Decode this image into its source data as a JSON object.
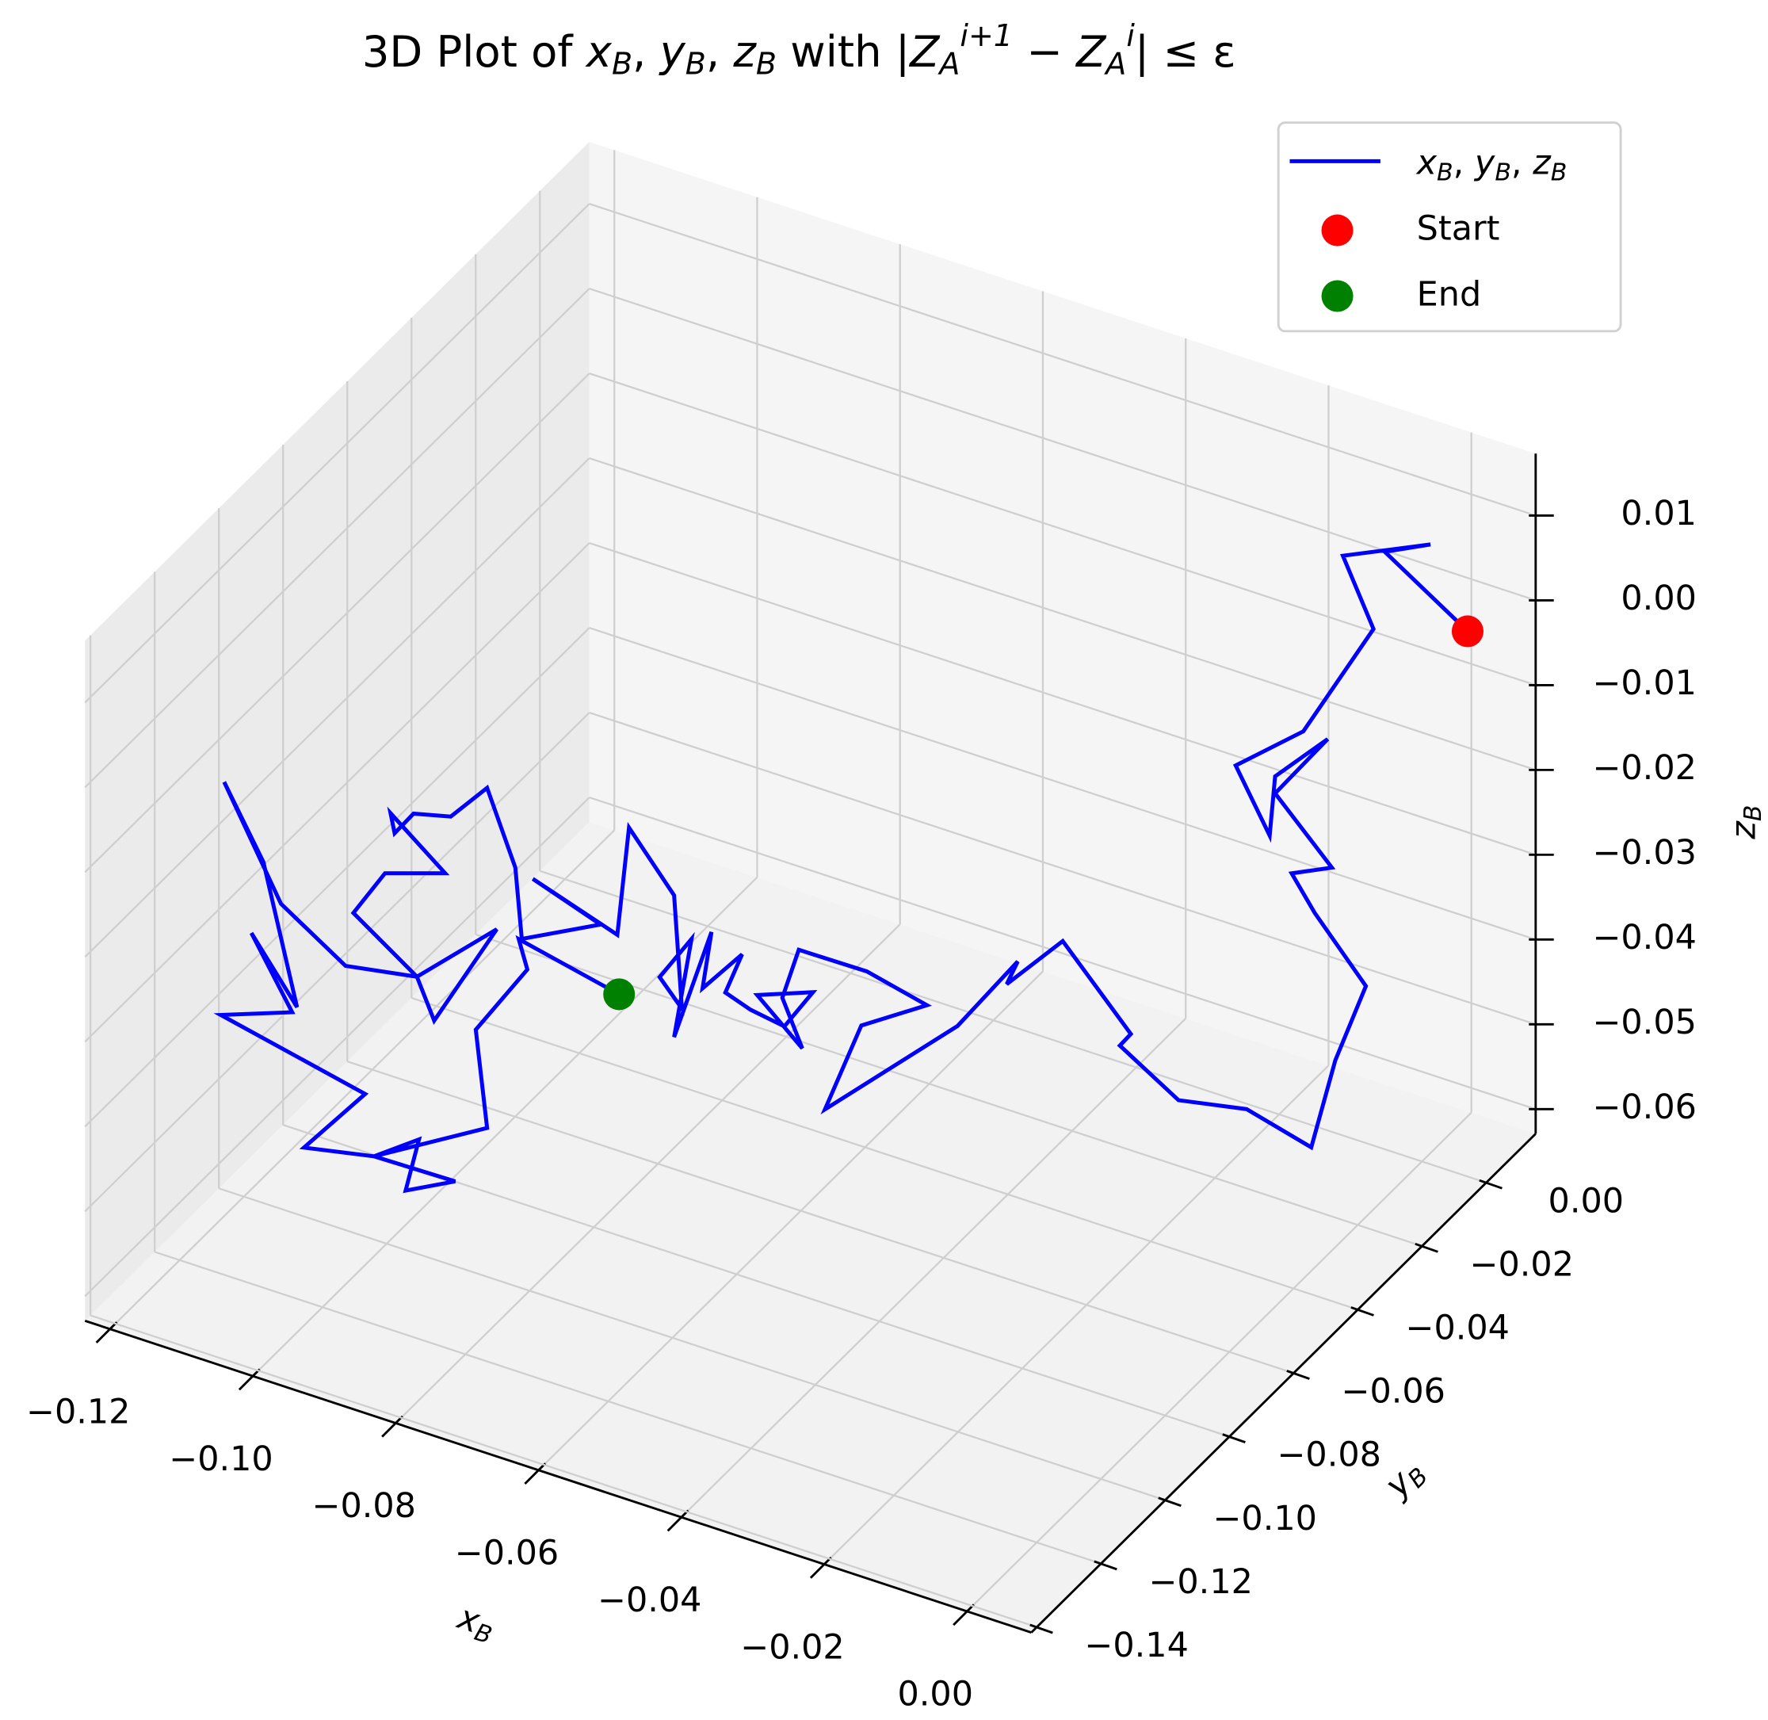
{
  "chart_data": {
    "type": "line3d",
    "title": "3D Plot of xB, yB, zB with |ZAi+1 − ZAi| ≤ ε",
    "x_label": "xB",
    "y_label": "yB",
    "z_label": "zB",
    "xlim": [
      -0.1235,
      0.009
    ],
    "ylim": [
      -0.1417,
      0.0154
    ],
    "zlim": [
      -0.0629,
      0.0173
    ],
    "xticks": [
      {
        "value": -0.12,
        "label": "−0.12"
      },
      {
        "value": -0.1,
        "label": "−0.10"
      },
      {
        "value": -0.08,
        "label": "−0.08"
      },
      {
        "value": -0.06,
        "label": "−0.06"
      },
      {
        "value": -0.04,
        "label": "−0.04"
      },
      {
        "value": -0.02,
        "label": "−0.02"
      },
      {
        "value": 0,
        "label": "0.00"
      }
    ],
    "yticks": [
      {
        "value": -0.14,
        "label": "−0.14"
      },
      {
        "value": -0.12,
        "label": "−0.12"
      },
      {
        "value": -0.1,
        "label": "−0.10"
      },
      {
        "value": -0.08,
        "label": "−0.08"
      },
      {
        "value": -0.06,
        "label": "−0.06"
      },
      {
        "value": -0.04,
        "label": "−0.04"
      },
      {
        "value": -0.02,
        "label": "−0.02"
      },
      {
        "value": 0,
        "label": "0.00"
      }
    ],
    "zticks": [
      {
        "value": -0.06,
        "label": "−0.06"
      },
      {
        "value": -0.05,
        "label": "−0.05"
      },
      {
        "value": -0.04,
        "label": "−0.04"
      },
      {
        "value": -0.03,
        "label": "−0.03"
      },
      {
        "value": -0.02,
        "label": "−0.02"
      },
      {
        "value": -0.01,
        "label": "−0.01"
      },
      {
        "value": 0,
        "label": "0.00"
      },
      0.01
    ],
    "grid": true,
    "legend": "upper right",
    "series": [
      {
        "name": "xB, yB, zB",
        "type": "line",
        "color": "#0000ff",
        "x": [
          0.0028,
          -0.0048,
          -0.0006,
          -0.0086,
          -0.0058,
          -0.0122,
          -0.0184,
          -0.0153,
          -0.0148,
          -0.01,
          -0.0148,
          -0.0096,
          -0.0133,
          -0.0112,
          -0.0065,
          -0.0093,
          -0.0115,
          -0.0174,
          -0.0236,
          -0.029,
          -0.028,
          -0.0342,
          -0.0393,
          -0.0383,
          -0.0438,
          -0.0559,
          -0.0526,
          -0.0466,
          -0.0521,
          -0.0583,
          -0.0598,
          -0.058,
          -0.0621,
          -0.057,
          -0.0596,
          -0.0627,
          -0.065,
          -0.0635,
          -0.0671,
          -0.0663,
          -0.0697,
          -0.0681,
          -0.071,
          -0.069,
          -0.0697,
          -0.0738,
          -0.0749,
          -0.0826,
          -0.0764,
          -0.0836,
          -0.0842,
          -0.0868,
          -0.0901,
          -0.0935,
          -0.0952,
          -0.0956,
          -0.0906,
          -0.0961,
          -0.099,
          -0.0932,
          -0.0916,
          -0.0859,
          -0.0932,
          -0.0997,
          -0.1056,
          -0.1108,
          -0.1072,
          -0.1041,
          -0.1083,
          -0.1046,
          -0.1111,
          -0.0979,
          -0.1035,
          -0.0971,
          -0.093,
          -0.0942,
          -0.0897,
          -0.0971,
          -0.0868,
          -0.0878,
          -0.0831,
          -0.0839,
          -0.0747
        ],
        "y": [
          0.008,
          -0.0009,
          0.004,
          -0.0055,
          -0.0022,
          -0.0098,
          -0.0171,
          -0.0134,
          -0.0128,
          -0.0071,
          -0.0128,
          -0.0067,
          -0.011,
          -0.0085,
          -0.003,
          -0.0063,
          -0.0089,
          -0.0159,
          -0.0233,
          -0.0296,
          -0.0284,
          -0.0358,
          -0.0419,
          -0.0407,
          -0.0472,
          -0.0616,
          -0.0576,
          -0.0505,
          -0.057,
          -0.0644,
          -0.0662,
          -0.064,
          -0.0689,
          -0.0629,
          -0.066,
          -0.0697,
          -0.0724,
          -0.0705,
          -0.0748,
          -0.0738,
          -0.0779,
          -0.076,
          -0.0795,
          -0.077,
          -0.0779,
          -0.0828,
          -0.084,
          -0.0932,
          -0.0859,
          -0.0944,
          -0.0951,
          -0.0981,
          -0.1021,
          -0.1061,
          -0.1082,
          -0.1086,
          -0.1027,
          -0.1092,
          -0.1126,
          -0.1057,
          -0.1039,
          -0.0971,
          -0.1057,
          -0.1135,
          -0.1205,
          -0.1266,
          -0.1224,
          -0.1188,
          -0.1237,
          -0.1192,
          -0.127,
          -0.1114,
          -0.118,
          -0.1104,
          -0.1055,
          -0.107,
          -0.1016,
          -0.1104,
          -0.0981,
          -0.0994,
          -0.0938,
          -0.0947,
          -0.0839
        ],
        "z": [
          -0.0026,
          0.008,
          0.0082,
          0.0082,
          -0.0009,
          -0.0119,
          -0.0149,
          -0.0237,
          -0.0168,
          -0.0132,
          -0.0188,
          -0.0284,
          -0.0285,
          -0.0335,
          -0.0429,
          -0.0512,
          -0.0611,
          -0.0556,
          -0.0535,
          -0.0462,
          -0.045,
          -0.033,
          -0.0372,
          -0.0347,
          -0.0414,
          -0.0492,
          -0.0399,
          -0.0385,
          -0.0336,
          -0.03,
          -0.0354,
          -0.0417,
          -0.0347,
          -0.0352,
          -0.0388,
          -0.0363,
          -0.0339,
          -0.0297,
          -0.0331,
          -0.0266,
          -0.0384,
          -0.0271,
          -0.0311,
          -0.0352,
          -0.0217,
          -0.013,
          -0.0255,
          -0.0176,
          -0.024,
          -0.0245,
          -0.016,
          -0.0062,
          -0.009,
          -0.0081,
          -0.0101,
          -0.0077,
          -0.0156,
          -0.0147,
          -0.0189,
          -0.0274,
          -0.0328,
          -0.023,
          -0.0274,
          -0.025,
          -0.0167,
          -0.0015,
          -0.0115,
          -0.0291,
          -0.0197,
          -0.0297,
          -0.0289,
          -0.0404,
          -0.0458,
          -0.0479,
          -0.0466,
          -0.0524,
          -0.0521,
          -0.0479,
          -0.0463,
          -0.0345,
          -0.0282,
          -0.0245,
          -0.0325
        ]
      },
      {
        "name": "Start",
        "type": "scatter",
        "color": "#ff0000",
        "x": [
          0.0028
        ],
        "y": [
          0.008
        ],
        "z": [
          -0.0026
        ]
      },
      {
        "name": "End",
        "type": "scatter",
        "color": "#008000",
        "x": [
          -0.0747
        ],
        "y": [
          -0.0839
        ],
        "z": [
          -0.0325
        ]
      }
    ]
  }
}
